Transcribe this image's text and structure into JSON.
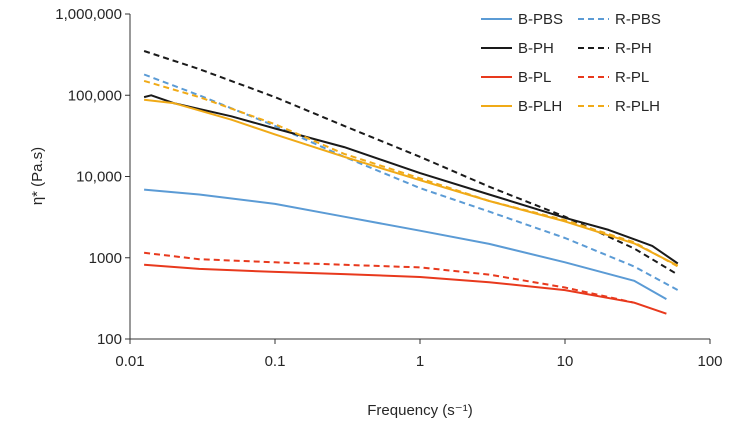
{
  "chart_data": {
    "type": "line",
    "xlabel": "Frequency (s⁻¹)",
    "ylabel": "η* (Pa.s)",
    "xscale": "log",
    "yscale": "log",
    "xlim": [
      0.01,
      100
    ],
    "ylim": [
      100,
      1000000
    ],
    "xticks": [
      0.01,
      0.1,
      1,
      10,
      100
    ],
    "xtick_labels": [
      "0.01",
      "0.1",
      "1",
      "10",
      "100"
    ],
    "yticks": [
      100,
      1000,
      10000,
      100000,
      1000000
    ],
    "ytick_labels": [
      "100",
      "1000",
      "10,000",
      "100,000",
      "1,000,000"
    ],
    "grid": false,
    "legend_position": "top-right",
    "series": [
      {
        "name": "B-PBS",
        "color": "#5B9BD5",
        "dash": "solid",
        "x": [
          0.0125,
          0.03,
          0.1,
          0.3,
          1,
          3,
          10,
          30,
          50
        ],
        "y": [
          6900,
          6000,
          4600,
          3200,
          2150,
          1480,
          880,
          520,
          310
        ]
      },
      {
        "name": "R-PBS",
        "color": "#5B9BD5",
        "dash": "dashed",
        "x": [
          0.0125,
          0.03,
          0.1,
          0.3,
          1,
          3,
          10,
          30,
          60
        ],
        "y": [
          180000,
          100000,
          42000,
          17500,
          7200,
          3700,
          1750,
          780,
          400
        ]
      },
      {
        "name": "B-PH",
        "color": "#1A1A1A",
        "dash": "solid",
        "x": [
          0.0125,
          0.014,
          0.02,
          0.05,
          0.1,
          0.3,
          1,
          3,
          10,
          20,
          40,
          60
        ],
        "y": [
          95000,
          100000,
          80000,
          55000,
          39000,
          23000,
          11000,
          6000,
          3100,
          2200,
          1400,
          850
        ]
      },
      {
        "name": "R-PH",
        "color": "#1A1A1A",
        "dash": "dashed",
        "x": [
          0.0125,
          0.03,
          0.1,
          0.3,
          1,
          3,
          10,
          30,
          60
        ],
        "y": [
          350000,
          210000,
          95000,
          42000,
          17500,
          7500,
          3200,
          1300,
          620
        ]
      },
      {
        "name": "B-PL",
        "color": "#E8391D",
        "dash": "solid",
        "x": [
          0.0125,
          0.03,
          0.1,
          0.3,
          1,
          3,
          10,
          30,
          50
        ],
        "y": [
          820,
          730,
          670,
          630,
          580,
          500,
          400,
          280,
          205
        ]
      },
      {
        "name": "R-PL",
        "color": "#E8391D",
        "dash": "dashed",
        "x": [
          0.0125,
          0.03,
          0.1,
          0.3,
          1,
          3,
          10,
          30
        ],
        "y": [
          1150,
          960,
          880,
          820,
          760,
          620,
          430,
          280
        ]
      },
      {
        "name": "B-PLH",
        "color": "#F0AA17",
        "dash": "solid",
        "x": [
          0.0125,
          0.02,
          0.05,
          0.1,
          0.3,
          1,
          3,
          10,
          30,
          60
        ],
        "y": [
          88000,
          80000,
          50000,
          33000,
          17500,
          9000,
          5000,
          2800,
          1500,
          800
        ]
      },
      {
        "name": "R-PLH",
        "color": "#F0AA17",
        "dash": "dashed",
        "x": [
          0.0125,
          0.03,
          0.1,
          0.3,
          1,
          3,
          10,
          30,
          60
        ],
        "y": [
          150000,
          95000,
          44000,
          19000,
          9500,
          5000,
          2900,
          1550,
          780
        ]
      }
    ]
  }
}
